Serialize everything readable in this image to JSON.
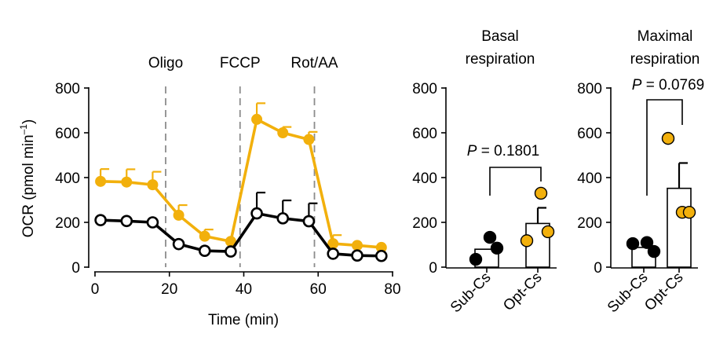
{
  "chart_data": [
    {
      "type": "line",
      "xlabel": "Time (min)",
      "ylabel_main": "OCR (pmol min",
      "ylabel_sup": "–1",
      "ylabel_close": ")",
      "xlim": [
        0,
        80
      ],
      "ylim": [
        0,
        800
      ],
      "xticks": [
        "0",
        "20",
        "40",
        "60",
        "80"
      ],
      "yticks": [
        "0",
        "200",
        "400",
        "600",
        "800"
      ],
      "injections": [
        {
          "label": "Oligo",
          "x": 19
        },
        {
          "label": "FCCP",
          "x": 39
        },
        {
          "label": "Rot/AA",
          "x": 59
        }
      ],
      "series": [
        {
          "name": "Opt-Cs",
          "color": "#F2B00C",
          "filled": true,
          "x": [
            1.5,
            8.5,
            15.5,
            22.5,
            29.5,
            36.5,
            43.5,
            50.5,
            57.5,
            64,
            70.5,
            77
          ],
          "values": [
            383,
            380,
            368,
            232,
            138,
            115,
            660,
            600,
            570,
            105,
            97,
            88
          ],
          "err": [
            55,
            57,
            58,
            45,
            30,
            0,
            72,
            26,
            34,
            38,
            0,
            0
          ]
        },
        {
          "name": "Sub-Cs",
          "color": "#000000",
          "filled": false,
          "x": [
            1.5,
            8.5,
            15.5,
            22.5,
            29.5,
            36.5,
            43.5,
            50.5,
            57.5,
            64,
            70.5,
            77
          ],
          "values": [
            210,
            206,
            200,
            103,
            73,
            70,
            240,
            218,
            205,
            60,
            52,
            50
          ],
          "err": [
            0,
            0,
            0,
            0,
            0,
            0,
            93,
            80,
            80,
            0,
            0,
            0
          ]
        }
      ]
    },
    {
      "type": "bar",
      "title": [
        "Basal",
        "respiration"
      ],
      "categories": [
        "Sub-Cs",
        "Opt-Cs"
      ],
      "ylim": [
        0,
        800
      ],
      "yticks": [
        "0",
        "200",
        "400",
        "600",
        "800"
      ],
      "values": [
        80,
        195
      ],
      "err": [
        0,
        70
      ],
      "points": [
        [
          35,
          133,
          85
        ],
        [
          118,
          330,
          158
        ]
      ],
      "point_colors": [
        "#000000",
        "#F2B00C"
      ],
      "p_label": "P",
      "p_text": " = 0.1801"
    },
    {
      "type": "bar",
      "title": [
        "Maximal",
        "respiration"
      ],
      "categories": [
        "Sub-Cs",
        "Opt-Cs"
      ],
      "ylim": [
        0,
        800
      ],
      "yticks": [
        "0",
        "200",
        "400",
        "600",
        "800"
      ],
      "values": [
        88,
        352
      ],
      "err": [
        0,
        113
      ],
      "points": [
        [
          105,
          110,
          70
        ],
        [
          575,
          245,
          245
        ]
      ],
      "point_colors": [
        "#000000",
        "#F2B00C"
      ],
      "p_label": "P",
      "p_text": " = 0.0769"
    }
  ]
}
